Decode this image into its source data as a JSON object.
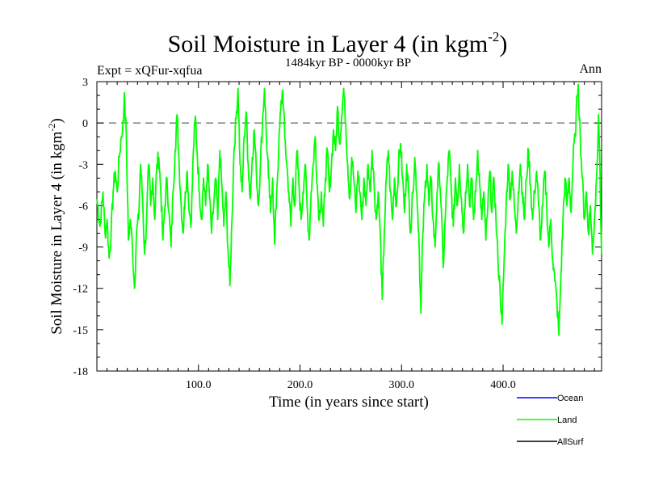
{
  "chart_data": {
    "type": "line",
    "title": "Soil Moisture in Layer 4 (in kgm",
    "title_sup": "-2",
    "title_close": ")",
    "subtitle": "1484kyr BP - 0000kyr BP",
    "expt_label": "Expt = xQFur-xqfua",
    "season_label": "Ann",
    "xlabel": "Time (in years since start)",
    "ylabel": "Soil Moisture in Layer 4 (in kgm",
    "ylabel_sup": "-2",
    "ylabel_close": ")",
    "xlim": [
      0,
      497
    ],
    "ylim": [
      -18,
      3
    ],
    "x_ticks": [
      100,
      200,
      300,
      400
    ],
    "x_tick_labels": [
      "100.0",
      "200.0",
      "300.0",
      "400.0"
    ],
    "y_ticks": [
      3,
      0,
      -3,
      -6,
      -9,
      -12,
      -15,
      -18
    ],
    "y_tick_labels": [
      "3",
      "0",
      "-3",
      "-6",
      "-9",
      "-12",
      "-15",
      "-18"
    ],
    "reference_line": 0,
    "legend": [
      {
        "name": "Ocean",
        "color": "#0000ff"
      },
      {
        "name": "Land",
        "color": "#00ff00"
      },
      {
        "name": "AllSurf",
        "color": "#000000"
      }
    ],
    "series": [
      {
        "name": "Land",
        "color": "#00ff00",
        "anchors": [
          [
            0,
            -5.5
          ],
          [
            3,
            -7.5
          ],
          [
            6,
            -5
          ],
          [
            8,
            -8
          ],
          [
            10,
            -7
          ],
          [
            12,
            -9.8
          ],
          [
            14,
            -8
          ],
          [
            16,
            -5
          ],
          [
            18,
            -3.5
          ],
          [
            20,
            -5
          ],
          [
            22,
            -2.5
          ],
          [
            24,
            -1
          ],
          [
            26,
            0
          ],
          [
            27,
            2.2
          ],
          [
            29,
            -1
          ],
          [
            30,
            -5
          ],
          [
            31,
            -8.5
          ],
          [
            33,
            -7
          ],
          [
            35,
            -9
          ],
          [
            37,
            -12
          ],
          [
            39,
            -8
          ],
          [
            41,
            -7
          ],
          [
            43,
            -3
          ],
          [
            45,
            -5.5
          ],
          [
            47,
            -9.5
          ],
          [
            49,
            -7
          ],
          [
            51,
            -3
          ],
          [
            53,
            -6
          ],
          [
            55,
            -4
          ],
          [
            57,
            -7
          ],
          [
            59,
            -3
          ],
          [
            61,
            -2.5
          ],
          [
            63,
            -5
          ],
          [
            65,
            -8.5
          ],
          [
            67,
            -6
          ],
          [
            69,
            -4
          ],
          [
            71,
            -6.5
          ],
          [
            73,
            -9
          ],
          [
            75,
            -5
          ],
          [
            77,
            -2
          ],
          [
            79,
            0.6
          ],
          [
            81,
            -3
          ],
          [
            83,
            -6
          ],
          [
            85,
            -8
          ],
          [
            87,
            -5
          ],
          [
            89,
            -3.5
          ],
          [
            91,
            -6.5
          ],
          [
            93,
            -7
          ],
          [
            95,
            -2
          ],
          [
            97,
            0.5
          ],
          [
            99,
            -2.5
          ],
          [
            101,
            -5
          ],
          [
            103,
            -7
          ],
          [
            105,
            -4
          ],
          [
            107,
            -6
          ],
          [
            109,
            -3
          ],
          [
            111,
            -5.5
          ],
          [
            113,
            -8
          ],
          [
            115,
            -6
          ],
          [
            117,
            -4
          ],
          [
            119,
            -7
          ],
          [
            121,
            -2
          ],
          [
            123,
            -4.5
          ],
          [
            125,
            -7.5
          ],
          [
            127,
            -5
          ],
          [
            129,
            -9
          ],
          [
            131,
            -11.8
          ],
          [
            133,
            -7
          ],
          [
            135,
            -2
          ],
          [
            137,
            0.3
          ],
          [
            139,
            2.5
          ],
          [
            141,
            -3
          ],
          [
            143,
            -5
          ],
          [
            145,
            -1
          ],
          [
            147,
            0.8
          ],
          [
            149,
            -3
          ],
          [
            151,
            -5.5
          ],
          [
            153,
            -2.5
          ],
          [
            155,
            -0.5
          ],
          [
            157,
            -3.5
          ],
          [
            159,
            -6
          ],
          [
            161,
            -3
          ],
          [
            163,
            0
          ],
          [
            165,
            2.5
          ],
          [
            167,
            -1
          ],
          [
            169,
            -4
          ],
          [
            171,
            -6.5
          ],
          [
            173,
            -4
          ],
          [
            175,
            -8.8
          ],
          [
            177,
            -5
          ],
          [
            179,
            -2
          ],
          [
            181,
            1
          ],
          [
            183,
            2.4
          ],
          [
            185,
            -1
          ],
          [
            187,
            -3
          ],
          [
            189,
            -5
          ],
          [
            191,
            -7.5
          ],
          [
            193,
            -4
          ],
          [
            195,
            -6
          ],
          [
            197,
            -2
          ],
          [
            199,
            -4.5
          ],
          [
            201,
            -7
          ],
          [
            203,
            -5
          ],
          [
            205,
            -3
          ],
          [
            207,
            -6
          ],
          [
            209,
            -8.5
          ],
          [
            211,
            -5
          ],
          [
            213,
            -3
          ],
          [
            215,
            -1
          ],
          [
            217,
            -4.5
          ],
          [
            219,
            -7
          ],
          [
            221,
            -5
          ],
          [
            223,
            -7.5
          ],
          [
            225,
            -4
          ],
          [
            227,
            -2
          ],
          [
            229,
            -5
          ],
          [
            231,
            -3
          ],
          [
            233,
            -0.5
          ],
          [
            235,
            -2
          ],
          [
            237,
            1.2
          ],
          [
            239,
            -1.5
          ],
          [
            241,
            0.5
          ],
          [
            243,
            2.5
          ],
          [
            245,
            0
          ],
          [
            247,
            -3
          ],
          [
            249,
            -5.5
          ],
          [
            251,
            -2.5
          ],
          [
            253,
            -4
          ],
          [
            255,
            -6.5
          ],
          [
            257,
            -3.5
          ],
          [
            259,
            -5
          ],
          [
            261,
            -7
          ],
          [
            263,
            -4
          ],
          [
            265,
            -6
          ],
          [
            267,
            -3
          ],
          [
            269,
            -5
          ],
          [
            271,
            -2
          ],
          [
            273,
            -4.5
          ],
          [
            275,
            -7
          ],
          [
            277,
            -5
          ],
          [
            279,
            -8
          ],
          [
            281,
            -12.8
          ],
          [
            283,
            -8
          ],
          [
            285,
            -4
          ],
          [
            287,
            -2
          ],
          [
            289,
            -5
          ],
          [
            291,
            -7
          ],
          [
            293,
            -4
          ],
          [
            295,
            -6
          ],
          [
            297,
            -3
          ],
          [
            299,
            -1.5
          ],
          [
            301,
            -4
          ],
          [
            303,
            -6.5
          ],
          [
            305,
            -3
          ],
          [
            307,
            -5
          ],
          [
            309,
            -8
          ],
          [
            311,
            -5
          ],
          [
            313,
            -2.5
          ],
          [
            315,
            -5
          ],
          [
            317,
            -8
          ],
          [
            319,
            -13.8
          ],
          [
            321,
            -8
          ],
          [
            323,
            -5
          ],
          [
            325,
            -3
          ],
          [
            327,
            -6
          ],
          [
            329,
            -4
          ],
          [
            331,
            -7
          ],
          [
            333,
            -9
          ],
          [
            335,
            -5
          ],
          [
            337,
            -3
          ],
          [
            339,
            -6
          ],
          [
            341,
            -10.5
          ],
          [
            343,
            -7
          ],
          [
            345,
            -4
          ],
          [
            347,
            -2
          ],
          [
            349,
            -5
          ],
          [
            351,
            -7.5
          ],
          [
            353,
            -4
          ],
          [
            355,
            -6
          ],
          [
            357,
            -3
          ],
          [
            359,
            -5.5
          ],
          [
            361,
            -8
          ],
          [
            363,
            -5
          ],
          [
            365,
            -3
          ],
          [
            367,
            -6
          ],
          [
            369,
            -4
          ],
          [
            371,
            -7
          ],
          [
            373,
            -5
          ],
          [
            375,
            -2
          ],
          [
            377,
            -4.5
          ],
          [
            379,
            -7
          ],
          [
            381,
            -5
          ],
          [
            383,
            -8.5
          ],
          [
            385,
            -6
          ],
          [
            387,
            -3.5
          ],
          [
            389,
            -6.5
          ],
          [
            391,
            -4
          ],
          [
            393,
            -7
          ],
          [
            395,
            -10
          ],
          [
            397,
            -12
          ],
          [
            399,
            -14.6
          ],
          [
            401,
            -10
          ],
          [
            403,
            -6
          ],
          [
            405,
            -3
          ],
          [
            407,
            -5.5
          ],
          [
            409,
            -3.5
          ],
          [
            411,
            -6
          ],
          [
            413,
            -8
          ],
          [
            415,
            -5
          ],
          [
            417,
            -3
          ],
          [
            419,
            -5
          ],
          [
            421,
            -7
          ],
          [
            423,
            -4
          ],
          [
            425,
            -2
          ],
          [
            427,
            -4.5
          ],
          [
            429,
            -7
          ],
          [
            431,
            -5
          ],
          [
            433,
            -3.5
          ],
          [
            435,
            -6
          ],
          [
            437,
            -8.5
          ],
          [
            439,
            -6
          ],
          [
            441,
            -3.5
          ],
          [
            443,
            -6
          ],
          [
            445,
            -9
          ],
          [
            447,
            -7
          ],
          [
            449,
            -10
          ],
          [
            451,
            -11.5
          ],
          [
            453,
            -13
          ],
          [
            455,
            -15.4
          ],
          [
            457,
            -11
          ],
          [
            459,
            -7
          ],
          [
            461,
            -4
          ],
          [
            463,
            -6
          ],
          [
            465,
            -4
          ],
          [
            467,
            -6.5
          ],
          [
            469,
            -2.5
          ],
          [
            471,
            -1
          ],
          [
            473,
            2
          ],
          [
            474,
            2.8
          ],
          [
            476,
            -1
          ],
          [
            478,
            -4
          ],
          [
            480,
            -7
          ],
          [
            482,
            -5
          ],
          [
            484,
            -8
          ],
          [
            486,
            -6
          ],
          [
            488,
            -9.5
          ],
          [
            490,
            -7
          ],
          [
            492,
            -4
          ],
          [
            494,
            0.6
          ],
          [
            495,
            -2
          ],
          [
            496,
            -6.5
          ],
          [
            497,
            -9.5
          ]
        ]
      }
    ]
  }
}
